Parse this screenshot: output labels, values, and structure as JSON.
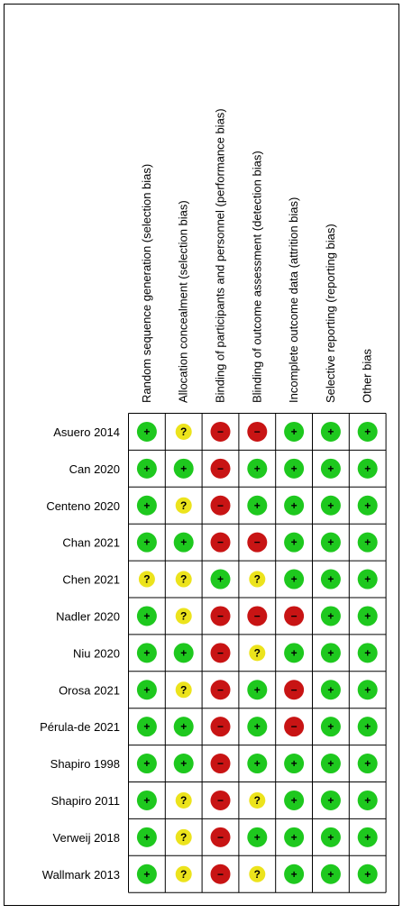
{
  "domains": [
    "Random sequence generation (selection bias)",
    "Allocation concealment (selection bias)",
    "Binding of participants and personnel (performance bias)",
    "Blinding of outcome assessment (detection bias)",
    "Incomplete outcome data (attrition bias)",
    "Selective reporting (reporting bias)",
    "Other bias"
  ],
  "studies": [
    {
      "name": "Asuero 2014",
      "cells": [
        {
          "symbol": "+",
          "color": "#1ec81e"
        },
        {
          "symbol": "?",
          "color": "#ece31c"
        },
        {
          "symbol": "−",
          "color": "#c81414"
        },
        {
          "symbol": "−",
          "color": "#c81414"
        },
        {
          "symbol": "+",
          "color": "#1ec81e"
        },
        {
          "symbol": "+",
          "color": "#1ec81e"
        },
        {
          "symbol": "+",
          "color": "#1ec81e"
        }
      ]
    },
    {
      "name": "Can 2020",
      "cells": [
        {
          "symbol": "+",
          "color": "#1ec81e"
        },
        {
          "symbol": "+",
          "color": "#1ec81e"
        },
        {
          "symbol": "−",
          "color": "#c81414"
        },
        {
          "symbol": "+",
          "color": "#1ec81e"
        },
        {
          "symbol": "+",
          "color": "#1ec81e"
        },
        {
          "symbol": "+",
          "color": "#1ec81e"
        },
        {
          "symbol": "+",
          "color": "#1ec81e"
        }
      ]
    },
    {
      "name": "Centeno 2020",
      "cells": [
        {
          "symbol": "+",
          "color": "#1ec81e"
        },
        {
          "symbol": "?",
          "color": "#ece31c"
        },
        {
          "symbol": "−",
          "color": "#c81414"
        },
        {
          "symbol": "+",
          "color": "#1ec81e"
        },
        {
          "symbol": "+",
          "color": "#1ec81e"
        },
        {
          "symbol": "+",
          "color": "#1ec81e"
        },
        {
          "symbol": "+",
          "color": "#1ec81e"
        }
      ]
    },
    {
      "name": "Chan  2021",
      "cells": [
        {
          "symbol": "+",
          "color": "#1ec81e"
        },
        {
          "symbol": "+",
          "color": "#1ec81e"
        },
        {
          "symbol": "−",
          "color": "#c81414"
        },
        {
          "symbol": "−",
          "color": "#c81414"
        },
        {
          "symbol": "+",
          "color": "#1ec81e"
        },
        {
          "symbol": "+",
          "color": "#1ec81e"
        },
        {
          "symbol": "+",
          "color": "#1ec81e"
        }
      ]
    },
    {
      "name": "Chen 2021",
      "cells": [
        {
          "symbol": "?",
          "color": "#ece31c"
        },
        {
          "symbol": "?",
          "color": "#ece31c"
        },
        {
          "symbol": "+",
          "color": "#1ec81e"
        },
        {
          "symbol": "?",
          "color": "#ece31c"
        },
        {
          "symbol": "+",
          "color": "#1ec81e"
        },
        {
          "symbol": "+",
          "color": "#1ec81e"
        },
        {
          "symbol": "+",
          "color": "#1ec81e"
        }
      ]
    },
    {
      "name": "Nadler  2020",
      "cells": [
        {
          "symbol": "+",
          "color": "#1ec81e"
        },
        {
          "symbol": "?",
          "color": "#ece31c"
        },
        {
          "symbol": "−",
          "color": "#c81414"
        },
        {
          "symbol": "−",
          "color": "#c81414"
        },
        {
          "symbol": "−",
          "color": "#c81414"
        },
        {
          "symbol": "+",
          "color": "#1ec81e"
        },
        {
          "symbol": "+",
          "color": "#1ec81e"
        }
      ]
    },
    {
      "name": "Niu 2020",
      "cells": [
        {
          "symbol": "+",
          "color": "#1ec81e"
        },
        {
          "symbol": "+",
          "color": "#1ec81e"
        },
        {
          "symbol": "−",
          "color": "#c81414"
        },
        {
          "symbol": "?",
          "color": "#ece31c"
        },
        {
          "symbol": "+",
          "color": "#1ec81e"
        },
        {
          "symbol": "+",
          "color": "#1ec81e"
        },
        {
          "symbol": "+",
          "color": "#1ec81e"
        }
      ]
    },
    {
      "name": "Orosa 2021",
      "cells": [
        {
          "symbol": "+",
          "color": "#1ec81e"
        },
        {
          "symbol": "?",
          "color": "#ece31c"
        },
        {
          "symbol": "−",
          "color": "#c81414"
        },
        {
          "symbol": "+",
          "color": "#1ec81e"
        },
        {
          "symbol": "−",
          "color": "#c81414"
        },
        {
          "symbol": "+",
          "color": "#1ec81e"
        },
        {
          "symbol": "+",
          "color": "#1ec81e"
        }
      ]
    },
    {
      "name": "Pérula-de 2021",
      "cells": [
        {
          "symbol": "+",
          "color": "#1ec81e"
        },
        {
          "symbol": "+",
          "color": "#1ec81e"
        },
        {
          "symbol": "−",
          "color": "#c81414"
        },
        {
          "symbol": "+",
          "color": "#1ec81e"
        },
        {
          "symbol": "−",
          "color": "#c81414"
        },
        {
          "symbol": "+",
          "color": "#1ec81e"
        },
        {
          "symbol": "+",
          "color": "#1ec81e"
        }
      ]
    },
    {
      "name": "Shapiro 1998",
      "cells": [
        {
          "symbol": "+",
          "color": "#1ec81e"
        },
        {
          "symbol": "+",
          "color": "#1ec81e"
        },
        {
          "symbol": "−",
          "color": "#c81414"
        },
        {
          "symbol": "+",
          "color": "#1ec81e"
        },
        {
          "symbol": "+",
          "color": "#1ec81e"
        },
        {
          "symbol": "+",
          "color": "#1ec81e"
        },
        {
          "symbol": "+",
          "color": "#1ec81e"
        }
      ]
    },
    {
      "name": "Shapiro 2011",
      "cells": [
        {
          "symbol": "+",
          "color": "#1ec81e"
        },
        {
          "symbol": "?",
          "color": "#ece31c"
        },
        {
          "symbol": "−",
          "color": "#c81414"
        },
        {
          "symbol": "?",
          "color": "#ece31c"
        },
        {
          "symbol": "+",
          "color": "#1ec81e"
        },
        {
          "symbol": "+",
          "color": "#1ec81e"
        },
        {
          "symbol": "+",
          "color": "#1ec81e"
        }
      ]
    },
    {
      "name": "Verweij 2018",
      "cells": [
        {
          "symbol": "+",
          "color": "#1ec81e"
        },
        {
          "symbol": "?",
          "color": "#ece31c"
        },
        {
          "symbol": "−",
          "color": "#c81414"
        },
        {
          "symbol": "+",
          "color": "#1ec81e"
        },
        {
          "symbol": "+",
          "color": "#1ec81e"
        },
        {
          "symbol": "+",
          "color": "#1ec81e"
        },
        {
          "symbol": "+",
          "color": "#1ec81e"
        }
      ]
    },
    {
      "name": "Wallmark 2013",
      "cells": [
        {
          "symbol": "+",
          "color": "#1ec81e"
        },
        {
          "symbol": "?",
          "color": "#ece31c"
        },
        {
          "symbol": "−",
          "color": "#c81414"
        },
        {
          "symbol": "?",
          "color": "#ece31c"
        },
        {
          "symbol": "+",
          "color": "#1ec81e"
        },
        {
          "symbol": "+",
          "color": "#1ec81e"
        },
        {
          "symbol": "+",
          "color": "#1ec81e"
        }
      ]
    }
  ]
}
